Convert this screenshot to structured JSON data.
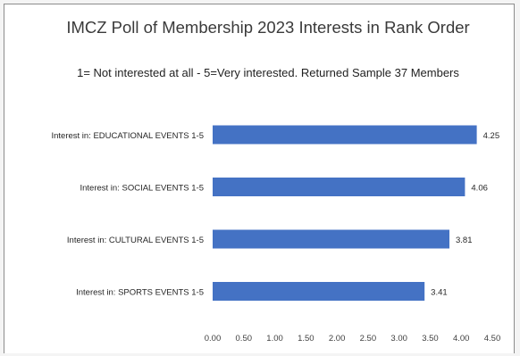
{
  "chart_data": {
    "type": "bar",
    "orientation": "horizontal",
    "title": "IMCZ Poll of Membership 2023 Interests in Rank Order",
    "subtitle": "1= Not interested at all - 5=Very interested. Returned Sample 37 Members",
    "categories": [
      "Interest in: EDUCATIONAL EVENTS  1-5",
      "Interest in: SOCIAL EVENTS 1-5",
      "Interest in: CULTURAL EVENTS 1-5",
      "Interest in: SPORTS EVENTS 1-5"
    ],
    "values": [
      4.25,
      4.06,
      3.81,
      3.41
    ],
    "data_labels": [
      "4.25",
      "4.06",
      "3.81",
      "3.41"
    ],
    "xlim": [
      0,
      4.5
    ],
    "x_ticks": [
      "0.00",
      "0.50",
      "1.00",
      "1.50",
      "2.00",
      "2.50",
      "3.00",
      "3.50",
      "4.00",
      "4.50"
    ],
    "grid": false,
    "legend": "none",
    "bar_color": "#4472c4"
  }
}
